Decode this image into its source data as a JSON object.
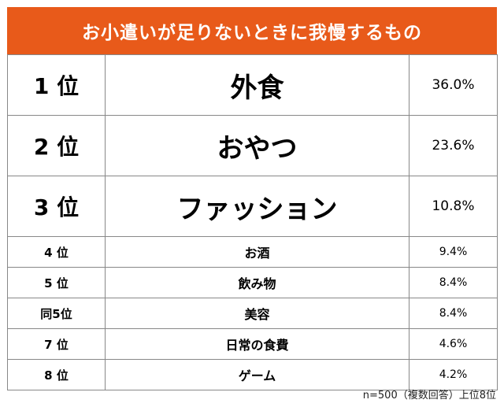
{
  "title": "お小遣いが足りないときに我慢するもの",
  "chart_data": {
    "type": "table",
    "title": "お小遣いが足りないときに我慢するもの",
    "columns": [
      "rank",
      "item",
      "percent"
    ],
    "rows": [
      {
        "rank": "1 位",
        "item": "外食",
        "percent": "36.0%",
        "value": 36.0
      },
      {
        "rank": "2 位",
        "item": "おやつ",
        "percent": "23.6%",
        "value": 23.6
      },
      {
        "rank": "3 位",
        "item": "ファッション",
        "percent": "10.8%",
        "value": 10.8
      },
      {
        "rank": "4 位",
        "item": "お酒",
        "percent": "9.4%",
        "value": 9.4
      },
      {
        "rank": "5 位",
        "item": "飲み物",
        "percent": "8.4%",
        "value": 8.4
      },
      {
        "rank": "同5位",
        "item": "美容",
        "percent": "8.4%",
        "value": 8.4
      },
      {
        "rank": "7 位",
        "item": "日常の食費",
        "percent": "4.6%",
        "value": 4.6
      },
      {
        "rank": "8 位",
        "item": "ゲーム",
        "percent": "4.2%",
        "value": 4.2
      }
    ]
  },
  "footnote": "n=500（複数回答）上位8位",
  "colors": {
    "title_bg": "#E85A1A",
    "title_text": "#FFFFFF",
    "border": "#888888"
  }
}
